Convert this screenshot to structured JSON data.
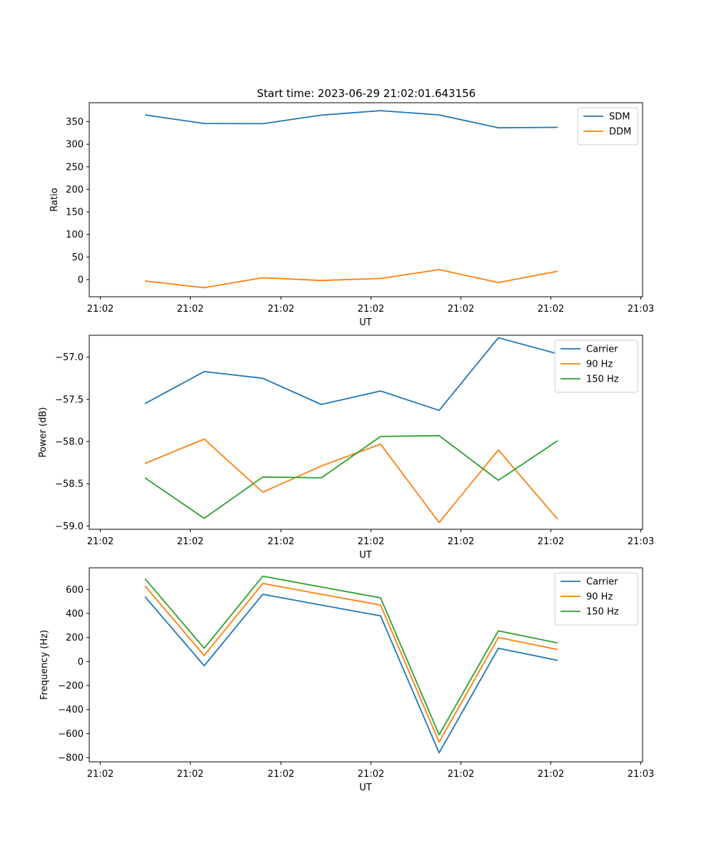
{
  "figure_title": "Start time: 2023-06-29 21:02:01.643156",
  "colors": {
    "blue": "#1f77b4",
    "orange": "#ff7f0e",
    "green": "#2ca02c"
  },
  "chart_data": [
    {
      "type": "line",
      "title": "Start time: 2023-06-29 21:02:01.643156",
      "xlabel": "UT",
      "ylabel": "Ratio",
      "x_tick_labels": [
        "21:02",
        "21:02",
        "21:02",
        "21:02",
        "21:02",
        "21:02",
        "21:03"
      ],
      "y_ticks": [
        0,
        50,
        100,
        150,
        200,
        250,
        300,
        350
      ],
      "ylim": [
        -38,
        392
      ],
      "grid": false,
      "legend_position": "top-right",
      "series": [
        {
          "name": "SDM",
          "color": "#1f77b4",
          "values": [
            365,
            346,
            345.5,
            364.5,
            374.5,
            365,
            336.5,
            337.5
          ]
        },
        {
          "name": "DDM",
          "color": "#ff7f0e",
          "values": [
            -3,
            -18,
            4,
            -2,
            2.5,
            22,
            -6.5,
            18.5
          ]
        }
      ]
    },
    {
      "type": "line",
      "title": "",
      "xlabel": "UT",
      "ylabel": "Power (dB)",
      "x_tick_labels": [
        "21:02",
        "21:02",
        "21:02",
        "21:02",
        "21:02",
        "21:02",
        "21:03"
      ],
      "y_ticks": [
        -59.0,
        -58.5,
        -58.0,
        -57.5,
        -57.0
      ],
      "y_tick_labels": [
        "−59.0",
        "−58.5",
        "−58.0",
        "−57.5",
        "−57.0"
      ],
      "ylim": [
        -59.04,
        -56.74
      ],
      "grid": false,
      "legend_position": "top-right",
      "series": [
        {
          "name": "Carrier",
          "color": "#1f77b4",
          "values": [
            -57.55,
            -57.17,
            -57.25,
            -57.56,
            -57.4,
            -57.63,
            -56.77,
            -56.96
          ]
        },
        {
          "name": "90 Hz",
          "color": "#ff7f0e",
          "values": [
            -58.26,
            -57.97,
            -58.6,
            -58.29,
            -58.03,
            -58.96,
            -58.1,
            -58.92
          ]
        },
        {
          "name": "150 Hz",
          "color": "#2ca02c",
          "values": [
            -58.43,
            -58.91,
            -58.42,
            -58.43,
            -57.94,
            -57.93,
            -58.46,
            -57.99
          ]
        }
      ]
    },
    {
      "type": "line",
      "title": "",
      "xlabel": "UT",
      "ylabel": "Frequency (Hz)",
      "x_tick_labels": [
        "21:02",
        "21:02",
        "21:02",
        "21:02",
        "21:02",
        "21:02",
        "21:03"
      ],
      "y_ticks": [
        -800,
        -600,
        -400,
        -200,
        0,
        200,
        400,
        600
      ],
      "y_tick_labels": [
        "−800",
        "−600",
        "−400",
        "−200",
        "0",
        "200",
        "400",
        "600"
      ],
      "ylim": [
        -835,
        780
      ],
      "grid": false,
      "legend_position": "top-right",
      "series": [
        {
          "name": "Carrier",
          "color": "#1f77b4",
          "values": [
            540,
            -35,
            560,
            470,
            380,
            -760,
            110,
            10
          ]
        },
        {
          "name": "90 Hz",
          "color": "#ff7f0e",
          "values": [
            630,
            50,
            650,
            560,
            470,
            -670,
            200,
            100
          ]
        },
        {
          "name": "150 Hz",
          "color": "#2ca02c",
          "values": [
            690,
            110,
            710,
            620,
            530,
            -610,
            255,
            155
          ]
        }
      ]
    }
  ]
}
